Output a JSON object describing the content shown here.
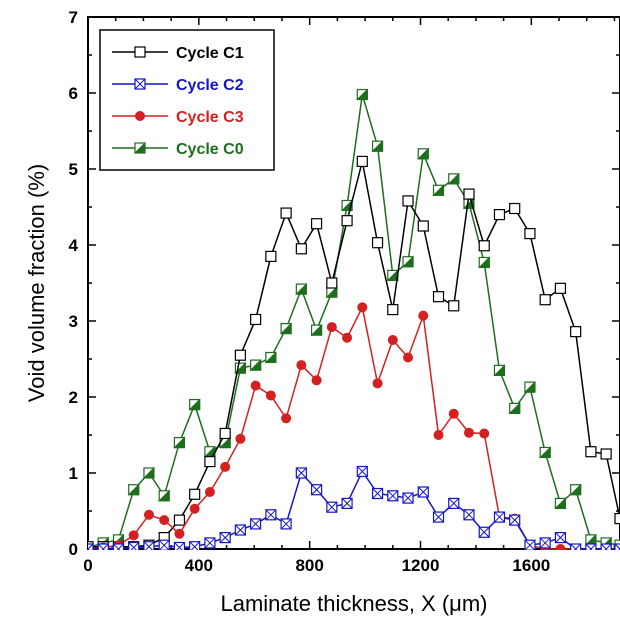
{
  "chart_data": {
    "type": "line",
    "xlabel": "Laminate thickness, X (μm)",
    "ylabel": "Void volume fraction (%)",
    "xlim": [
      0,
      1920
    ],
    "ylim": [
      0,
      7
    ],
    "xticks": [
      0,
      400,
      800,
      1200,
      1600
    ],
    "yticks": [
      0,
      1,
      2,
      3,
      4,
      5,
      6,
      7
    ],
    "legend_position": "top-left",
    "series": [
      {
        "name": "Cycle C1",
        "color": "#000000",
        "marker": "open-square",
        "x": [
          0,
          55,
          110,
          165,
          220,
          275,
          330,
          385,
          440,
          495,
          550,
          605,
          660,
          715,
          770,
          825,
          880,
          935,
          990,
          1045,
          1100,
          1155,
          1210,
          1265,
          1320,
          1375,
          1430,
          1485,
          1540,
          1595,
          1650,
          1705,
          1760,
          1815,
          1870,
          1920
        ],
        "y": [
          0.03,
          0.03,
          0.03,
          0.03,
          0.05,
          0.15,
          0.38,
          0.72,
          1.15,
          1.52,
          2.55,
          3.02,
          3.85,
          4.42,
          3.95,
          4.28,
          3.5,
          4.32,
          5.1,
          4.03,
          3.15,
          4.58,
          4.25,
          3.32,
          3.2,
          4.67,
          3.99,
          4.4,
          4.48,
          4.15,
          3.28,
          3.43,
          2.86,
          1.28,
          1.25,
          0.4
        ]
      },
      {
        "name": "Cycle C2",
        "color": "#1515c8",
        "marker": "crossed-square",
        "x": [
          0,
          55,
          110,
          165,
          220,
          275,
          330,
          385,
          440,
          495,
          550,
          605,
          660,
          715,
          770,
          825,
          880,
          935,
          990,
          1045,
          1100,
          1155,
          1210,
          1265,
          1320,
          1375,
          1430,
          1485,
          1540,
          1595,
          1650,
          1705,
          1760,
          1815,
          1870,
          1920
        ],
        "y": [
          0.0,
          0.0,
          0.0,
          0.02,
          0.03,
          0.05,
          0.02,
          0.03,
          0.08,
          0.15,
          0.25,
          0.33,
          0.45,
          0.33,
          1.0,
          0.78,
          0.55,
          0.6,
          1.02,
          0.73,
          0.7,
          0.67,
          0.75,
          0.42,
          0.6,
          0.45,
          0.22,
          0.42,
          0.38,
          0.05,
          0.08,
          0.15,
          0.0,
          0.0,
          0.0,
          0.0
        ]
      },
      {
        "name": "Cycle C3",
        "color": "#d42020",
        "marker": "filled-circle",
        "x": [
          0,
          55,
          110,
          165,
          220,
          275,
          330,
          385,
          440,
          495,
          550,
          605,
          660,
          715,
          770,
          825,
          880,
          935,
          990,
          1045,
          1100,
          1155,
          1210,
          1265,
          1320,
          1375,
          1430,
          1485,
          1540,
          1595,
          1650,
          1705,
          1760,
          1815,
          1870,
          1920
        ],
        "y": [
          0.0,
          0.02,
          0.05,
          0.18,
          0.45,
          0.38,
          0.2,
          0.53,
          0.75,
          1.08,
          1.45,
          2.15,
          2.02,
          1.72,
          2.42,
          2.22,
          2.92,
          2.78,
          3.18,
          2.18,
          2.75,
          2.52,
          3.07,
          1.5,
          1.78,
          1.53,
          1.52,
          0.42,
          0.4,
          0.05,
          0.0,
          0.0,
          0.0,
          0.0,
          0.0,
          0.0
        ]
      },
      {
        "name": "Cycle C0",
        "color": "#1e6e1e",
        "marker": "half-square",
        "x": [
          0,
          55,
          110,
          165,
          220,
          275,
          330,
          385,
          440,
          495,
          550,
          605,
          660,
          715,
          770,
          825,
          880,
          935,
          990,
          1045,
          1100,
          1155,
          1210,
          1265,
          1320,
          1375,
          1430,
          1485,
          1540,
          1595,
          1650,
          1705,
          1760,
          1815,
          1870,
          1920
        ],
        "y": [
          0.02,
          0.08,
          0.12,
          0.78,
          1.0,
          0.7,
          1.4,
          1.9,
          1.28,
          1.4,
          2.38,
          2.42,
          2.52,
          2.9,
          3.42,
          2.88,
          3.38,
          4.52,
          5.98,
          5.3,
          3.6,
          3.78,
          5.2,
          4.72,
          4.87,
          4.55,
          3.77,
          2.35,
          1.85,
          2.13,
          1.27,
          0.6,
          0.78,
          0.12,
          0.08,
          0.05
        ]
      }
    ]
  }
}
